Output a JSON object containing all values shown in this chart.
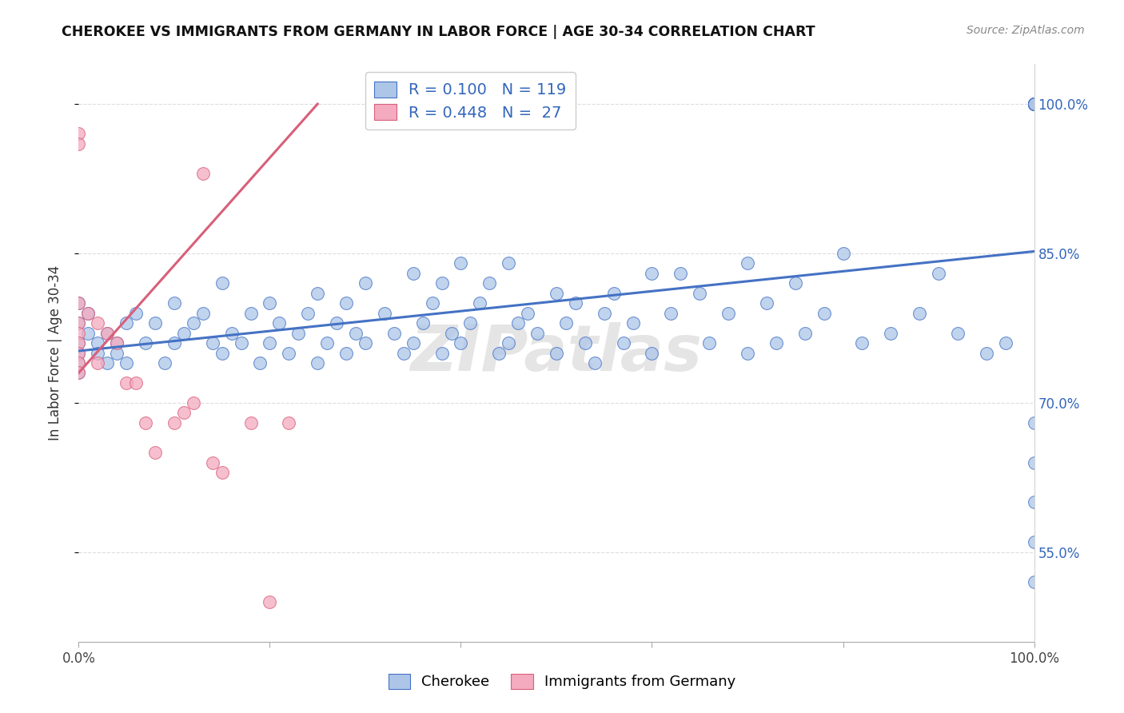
{
  "title": "CHEROKEE VS IMMIGRANTS FROM GERMANY IN LABOR FORCE | AGE 30-34 CORRELATION CHART",
  "source": "Source: ZipAtlas.com",
  "ylabel": "In Labor Force | Age 30-34",
  "xlim": [
    0.0,
    1.0
  ],
  "ylim": [
    0.46,
    1.04
  ],
  "yticks": [
    0.55,
    0.7,
    0.85,
    1.0
  ],
  "ytick_labels": [
    "55.0%",
    "70.0%",
    "85.0%",
    "100.0%"
  ],
  "xtick_labels": [
    "0.0%",
    "",
    "",
    "",
    "",
    "100.0%"
  ],
  "blue_color": "#adc6e8",
  "pink_color": "#f4aabf",
  "line_blue": "#4472c4",
  "line_pink": "#d95f7a",
  "watermark": "ZIPatlas",
  "blue_R": 0.1,
  "pink_R": 0.448,
  "blue_N": 119,
  "pink_N": 27,
  "blue_x": [
    0.0,
    0.0,
    0.0,
    0.0,
    0.0,
    0.0,
    0.01,
    0.01,
    0.02,
    0.02,
    0.03,
    0.03,
    0.04,
    0.04,
    0.05,
    0.05,
    0.06,
    0.07,
    0.08,
    0.09,
    0.1,
    0.1,
    0.11,
    0.12,
    0.13,
    0.14,
    0.15,
    0.15,
    0.16,
    0.17,
    0.18,
    0.19,
    0.2,
    0.2,
    0.21,
    0.22,
    0.23,
    0.24,
    0.25,
    0.25,
    0.26,
    0.27,
    0.28,
    0.28,
    0.29,
    0.3,
    0.3,
    0.32,
    0.33,
    0.34,
    0.35,
    0.35,
    0.36,
    0.37,
    0.38,
    0.38,
    0.39,
    0.4,
    0.4,
    0.41,
    0.42,
    0.43,
    0.44,
    0.45,
    0.45,
    0.46,
    0.47,
    0.48,
    0.5,
    0.5,
    0.51,
    0.52,
    0.53,
    0.54,
    0.55,
    0.56,
    0.57,
    0.58,
    0.6,
    0.6,
    0.62,
    0.63,
    0.65,
    0.66,
    0.68,
    0.7,
    0.7,
    0.72,
    0.73,
    0.75,
    0.76,
    0.78,
    0.8,
    0.82,
    0.85,
    0.88,
    0.9,
    0.92,
    0.95,
    0.97,
    1.0,
    1.0,
    1.0,
    1.0,
    1.0,
    1.0,
    1.0,
    1.0,
    1.0,
    1.0,
    1.0,
    1.0,
    1.0,
    1.0,
    1.0,
    1.0,
    1.0,
    1.0,
    1.0,
    1.0,
    1.0,
    1.0,
    1.0,
    1.0,
    1.0
  ],
  "blue_y": [
    0.8,
    0.78,
    0.76,
    0.75,
    0.74,
    0.73,
    0.79,
    0.77,
    0.76,
    0.75,
    0.77,
    0.74,
    0.76,
    0.75,
    0.78,
    0.74,
    0.79,
    0.76,
    0.78,
    0.74,
    0.8,
    0.76,
    0.77,
    0.78,
    0.79,
    0.76,
    0.82,
    0.75,
    0.77,
    0.76,
    0.79,
    0.74,
    0.8,
    0.76,
    0.78,
    0.75,
    0.77,
    0.79,
    0.81,
    0.74,
    0.76,
    0.78,
    0.8,
    0.75,
    0.77,
    0.82,
    0.76,
    0.79,
    0.77,
    0.75,
    0.83,
    0.76,
    0.78,
    0.8,
    0.82,
    0.75,
    0.77,
    0.84,
    0.76,
    0.78,
    0.8,
    0.82,
    0.75,
    0.84,
    0.76,
    0.78,
    0.79,
    0.77,
    0.81,
    0.75,
    0.78,
    0.8,
    0.76,
    0.74,
    0.79,
    0.81,
    0.76,
    0.78,
    0.83,
    0.75,
    0.79,
    0.83,
    0.81,
    0.76,
    0.79,
    0.84,
    0.75,
    0.8,
    0.76,
    0.82,
    0.77,
    0.79,
    0.85,
    0.76,
    0.77,
    0.79,
    0.83,
    0.77,
    0.75,
    0.76,
    1.0,
    1.0,
    1.0,
    1.0,
    1.0,
    1.0,
    1.0,
    1.0,
    1.0,
    1.0,
    1.0,
    1.0,
    1.0,
    1.0,
    1.0,
    1.0,
    1.0,
    1.0,
    1.0,
    1.0,
    0.68,
    0.64,
    0.6,
    0.56,
    0.52
  ],
  "pink_x": [
    0.0,
    0.0,
    0.0,
    0.0,
    0.0,
    0.0,
    0.0,
    0.0,
    0.0,
    0.01,
    0.02,
    0.02,
    0.03,
    0.04,
    0.05,
    0.06,
    0.07,
    0.08,
    0.1,
    0.11,
    0.12,
    0.13,
    0.14,
    0.15,
    0.18,
    0.2,
    0.22
  ],
  "pink_y": [
    0.97,
    0.96,
    0.8,
    0.78,
    0.77,
    0.76,
    0.75,
    0.74,
    0.73,
    0.79,
    0.78,
    0.74,
    0.77,
    0.76,
    0.72,
    0.72,
    0.68,
    0.65,
    0.68,
    0.69,
    0.7,
    0.93,
    0.64,
    0.63,
    0.68,
    0.5,
    0.68
  ],
  "blue_trend_x0": 0.0,
  "blue_trend_y0": 0.752,
  "blue_trend_x1": 1.0,
  "blue_trend_y1": 0.852,
  "pink_trend_x0": 0.0,
  "pink_trend_y0": 0.73,
  "pink_trend_x1": 0.25,
  "pink_trend_y1": 1.0
}
